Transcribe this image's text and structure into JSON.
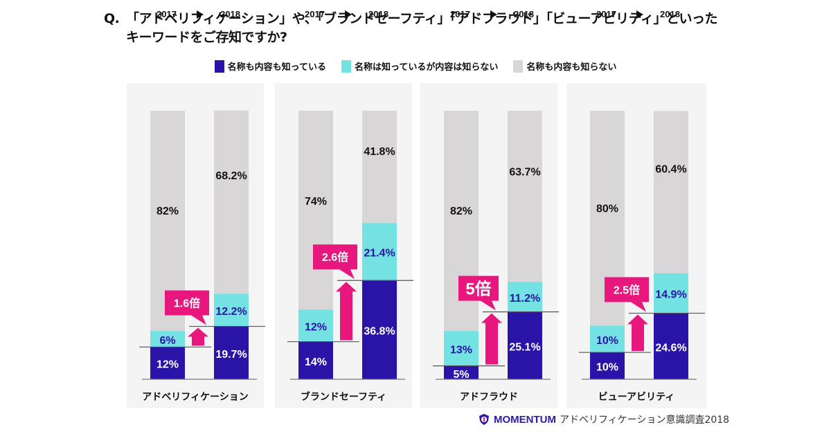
{
  "title": {
    "prefix": "Q.",
    "line1": "「アドベリフィケーション」や、「ブランドセーフティ」「アドフラウド」「ビューアビリティ」といった",
    "line2": "キーワードをご存知ですか?"
  },
  "legend": [
    {
      "label": "名称も内容も知っている",
      "color": "#2a14a8"
    },
    {
      "label": "名称は知っているが内容は知らない",
      "color": "#74e1e2"
    },
    {
      "label": "名称も内容も知らない",
      "color": "#d8d6d6"
    }
  ],
  "colors": {
    "accent": "#e8177e",
    "dark": "#2a14a8",
    "light": "#74e1e2",
    "gray": "#d8d6d6"
  },
  "footer": {
    "brand": "MOMENTUM",
    "source": "アドベリフィケーション意識調査2018"
  },
  "chart_data": {
    "type": "bar",
    "stacked": true,
    "title": "「アドベリフィケーション」や、「ブランドセーフティ」「アドフラウド」「ビューアビリティ」といったキーワードをご存知ですか?",
    "years": [
      "2017",
      "2018"
    ],
    "ylim": [
      0,
      100
    ],
    "series_names": [
      "名称も内容も知っている",
      "名称は知っているが内容は知らない",
      "名称も内容も知らない"
    ],
    "groups": [
      {
        "category": "アドベリフィケーション",
        "multiplier": "1.6倍",
        "bars": [
          {
            "year": "2017",
            "values": [
              12,
              6,
              82
            ],
            "labels": [
              "12%",
              "6%",
              "82%"
            ]
          },
          {
            "year": "2018",
            "values": [
              19.7,
              12.2,
              68.2
            ],
            "labels": [
              "19.7%",
              "12.2%",
              "68.2%"
            ]
          }
        ]
      },
      {
        "category": "ブランドセーフティ",
        "multiplier": "2.6倍",
        "bars": [
          {
            "year": "2017",
            "values": [
              14,
              12,
              74
            ],
            "labels": [
              "14%",
              "12%",
              "74%"
            ]
          },
          {
            "year": "2018",
            "values": [
              36.8,
              21.4,
              41.8
            ],
            "labels": [
              "36.8%",
              "21.4%",
              "41.8%"
            ]
          }
        ]
      },
      {
        "category": "アドフラウド",
        "multiplier": "5倍",
        "bars": [
          {
            "year": "2017",
            "values": [
              5,
              13,
              82
            ],
            "labels": [
              "5%",
              "13%",
              "82%"
            ]
          },
          {
            "year": "2018",
            "values": [
              25.1,
              11.2,
              63.7
            ],
            "labels": [
              "25.1%",
              "11.2%",
              "63.7%"
            ]
          }
        ]
      },
      {
        "category": "ビューアビリティ",
        "multiplier": "2.5倍",
        "bars": [
          {
            "year": "2017",
            "values": [
              10,
              10,
              80
            ],
            "labels": [
              "10%",
              "10%",
              "80%"
            ]
          },
          {
            "year": "2018",
            "values": [
              24.6,
              14.9,
              60.4
            ],
            "labels": [
              "24.6%",
              "14.9%",
              "60.4%"
            ]
          }
        ]
      }
    ]
  }
}
